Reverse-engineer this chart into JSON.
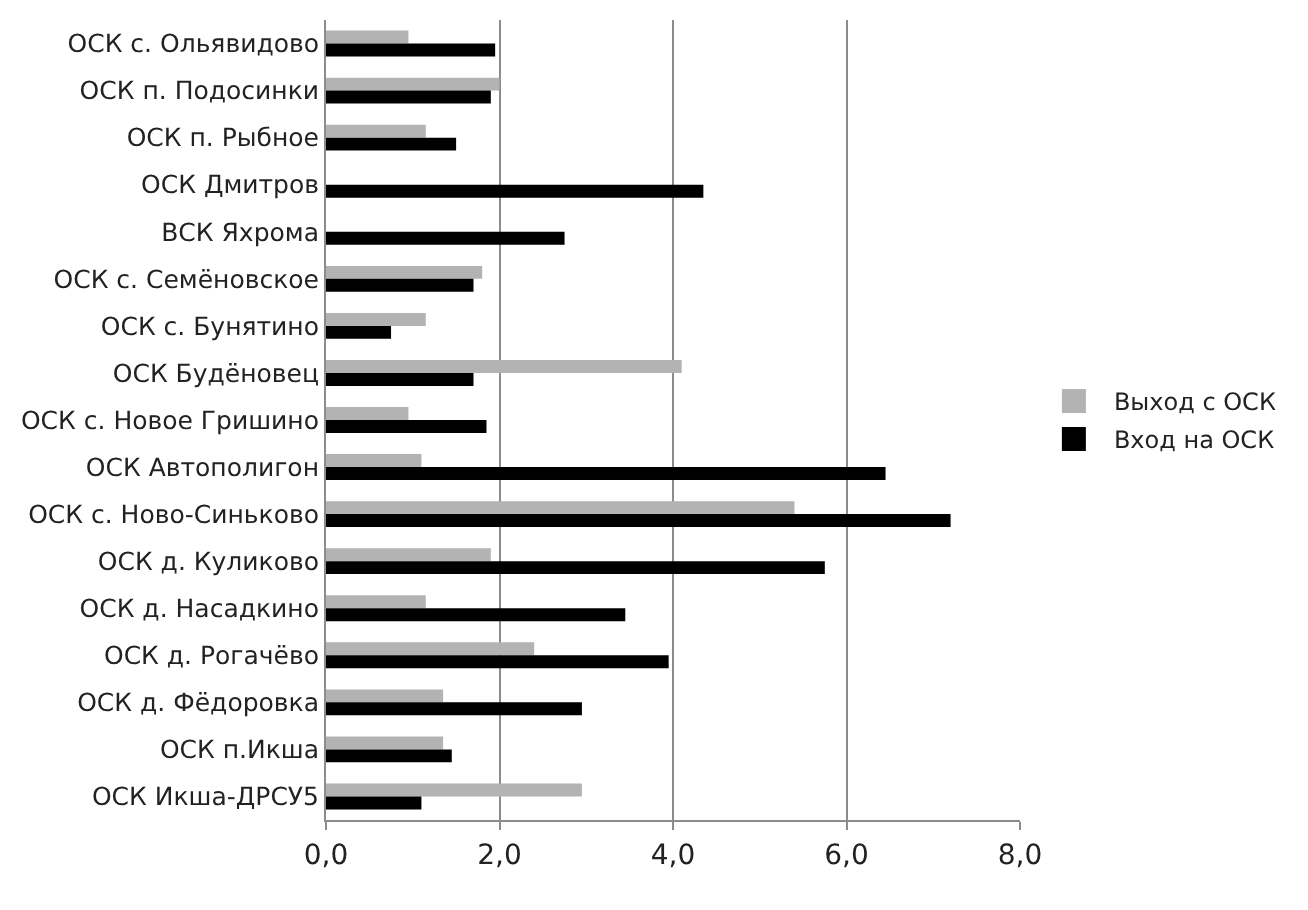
{
  "chart_data": {
    "type": "bar",
    "orientation": "horizontal",
    "categories": [
      "ОСК с. Ольявидово",
      "ОСК п. Подосинки",
      "ОСК п. Рыбное",
      "ОСК Дмитров",
      "ВСК Яхрома",
      "ОСК с. Семёновское",
      "ОСК с. Бунятино",
      "ОСК Будёновец",
      "ОСК с. Новое Гришино",
      "ОСК Автополигон",
      "ОСК с. Ново-Синьково",
      "ОСК д. Куликово",
      "ОСК д. Насадкино",
      "ОСК д. Рогачёво",
      "ОСК д. Фёдоровка",
      "ОСК п.Икша",
      "ОСК Икша-ДРСУ5"
    ],
    "series": [
      {
        "name": "Выход с ОСК",
        "color": "#b3b3b3",
        "values": [
          0.95,
          2.0,
          1.15,
          0,
          0,
          1.8,
          1.15,
          4.1,
          0.95,
          1.1,
          5.4,
          1.9,
          1.15,
          2.4,
          1.35,
          1.35,
          2.95
        ]
      },
      {
        "name": "Вход на ОСК",
        "color": "#000000",
        "values": [
          1.95,
          1.9,
          1.5,
          4.35,
          2.75,
          1.7,
          0.75,
          1.7,
          1.85,
          6.45,
          7.2,
          5.75,
          3.45,
          3.95,
          2.95,
          1.45,
          1.1
        ]
      }
    ],
    "xlim": [
      0,
      8
    ],
    "xticks": [
      {
        "value": 0,
        "label": "0,0"
      },
      {
        "value": 2,
        "label": "2,0"
      },
      {
        "value": 4,
        "label": "4,0"
      },
      {
        "value": 6,
        "label": "6,0"
      },
      {
        "value": 8,
        "label": "8,0"
      }
    ],
    "grid": "x",
    "legend": "right"
  }
}
